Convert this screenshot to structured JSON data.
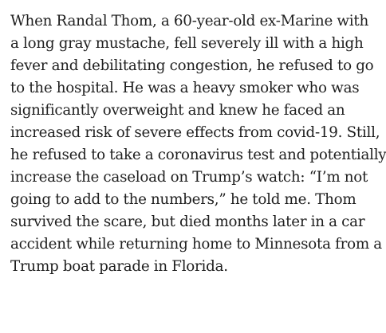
{
  "article": {
    "paragraph_lines": [
      "When Randal Thom, a 60-year-old ex-Marine with",
      "a long gray mustache, fell severely ill with a high",
      "fever and debilitating congestion, he refused to go",
      "to the hospital. He was a heavy smoker who was",
      "significantly overweight and knew he faced an",
      "increased risk of severe effects from covid-19. Still,",
      "he refused to take a coronavirus test and potentially",
      "increase the caseload on Trump’s watch: “I’m not",
      "going to add to the numbers,” he told me. Thom",
      "survived the scare, but died months later in a car",
      "accident while returning home to Minnesota from a",
      "Trump boat parade in Florida."
    ]
  }
}
